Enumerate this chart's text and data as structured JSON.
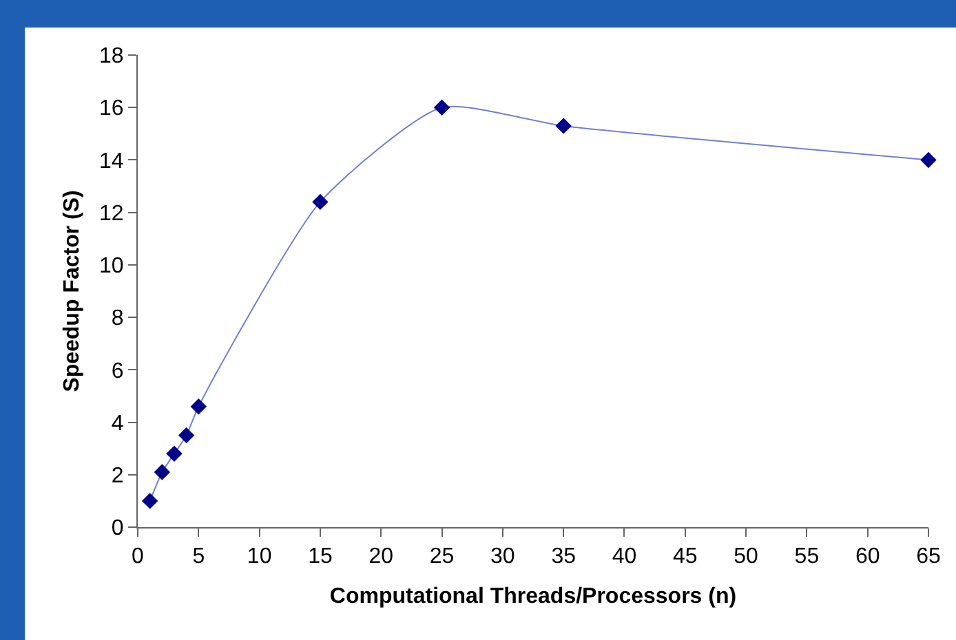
{
  "chart_data": {
    "type": "line",
    "xlabel": "Computational Threads/Processors (n)",
    "ylabel": "Speedup Factor (S)",
    "x": [
      1,
      2,
      3,
      4,
      5,
      15,
      25,
      35,
      65
    ],
    "series": [
      {
        "color": "#00008b",
        "values": [
          1,
          2.1,
          2.8,
          3.5,
          4.6,
          12.4,
          16,
          15.3,
          14
        ]
      }
    ],
    "xlim": [
      0,
      65
    ],
    "xticks": [
      0,
      5,
      10,
      15,
      20,
      25,
      30,
      35,
      40,
      45,
      50,
      55,
      60,
      65
    ],
    "ylim": [
      0,
      18
    ],
    "yticks": [
      0,
      2,
      4,
      6,
      8,
      10,
      12,
      14,
      16,
      18
    ],
    "grid": false,
    "marker": "diamond",
    "line_style": "solid"
  }
}
